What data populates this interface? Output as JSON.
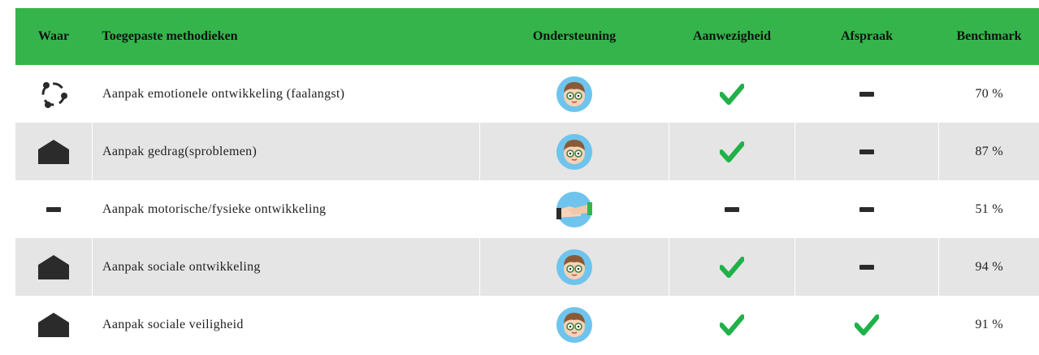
{
  "table": {
    "headers": [
      "Waar",
      "Toegepaste methodieken",
      "Ondersteuning",
      "Aanwezigheid",
      "Afspraak",
      "Benchmark"
    ],
    "rows": [
      [
        "Aanpak emotionele ontwikkeling (faalangst)",
        "70 %"
      ],
      [
        "Aanpak gedrag(sproblemen)",
        "87 %"
      ],
      [
        "Aanpak motorische/fysieke ontwikkeling",
        "51 %"
      ],
      [
        "Aanpak sociale ontwikkeling",
        "94 %"
      ],
      [
        "Aanpak sociale veiligheid",
        "91 %"
      ]
    ]
  }
}
